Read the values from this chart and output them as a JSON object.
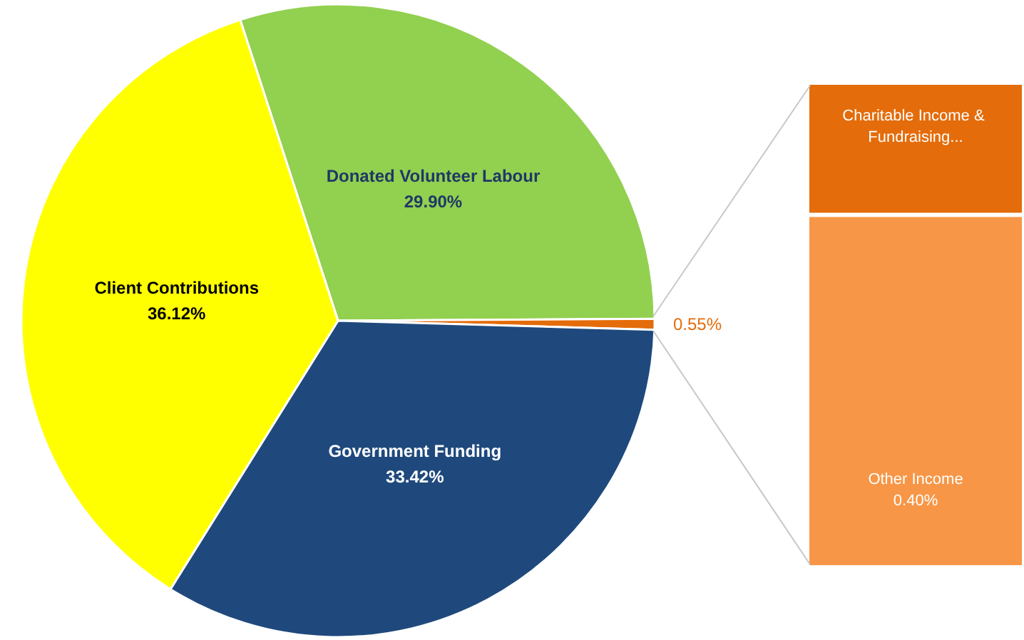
{
  "chart_data": [
    {
      "type": "pie",
      "categories": [
        "Donated Volunteer Labour",
        null,
        "Government Funding",
        "Client Contributions"
      ],
      "values": [
        29.9,
        0.55,
        33.42,
        36.12
      ],
      "colors": [
        "#92d050",
        "#e46c0a",
        "#1f497d",
        "#ffff00"
      ],
      "value_labels": [
        "29.90%",
        "0.55%",
        "33.42%",
        "36.12%"
      ],
      "legend": false
    },
    {
      "type": "bar",
      "stacked": true,
      "categories": [
        null
      ],
      "legend": false,
      "series": [
        {
          "name": "Other Income",
          "color": "#f79646",
          "values": [
            0.4
          ],
          "value_labels": [
            "0.40%"
          ]
        },
        {
          "name": "Charitable Income & Fundraising...",
          "color": "#e46c0a",
          "values": [
            0.15
          ]
        }
      ]
    }
  ]
}
